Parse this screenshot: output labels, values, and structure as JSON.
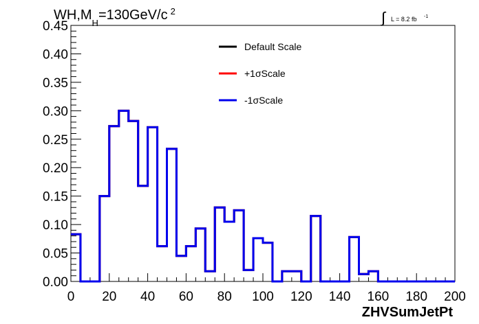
{
  "chart_data": {
    "type": "histogram-step",
    "title": {
      "prefix": "WH,M",
      "sub": "H",
      "suffix": "=130GeV/c",
      "sup": "2"
    },
    "lumi": {
      "symbol": "∫",
      "text": "L = 8.2 fb",
      "sup": "-1"
    },
    "xlabel": "ZHVSumJetPt",
    "ylabel": "",
    "xlim": [
      0,
      200
    ],
    "ylim": [
      0,
      0.45
    ],
    "xticks": [
      "0",
      "20",
      "40",
      "60",
      "80",
      "100",
      "120",
      "140",
      "160",
      "180",
      "200"
    ],
    "yticks": [
      "0.00",
      "0.05",
      "0.10",
      "0.15",
      "0.20",
      "0.25",
      "0.30",
      "0.35",
      "0.40",
      "0.45"
    ],
    "grid": false,
    "legend_position": "top-center",
    "bin_edges": [
      0,
      5,
      10,
      15,
      20,
      25,
      30,
      35,
      40,
      45,
      50,
      55,
      60,
      65,
      70,
      75,
      80,
      85,
      90,
      95,
      100,
      105,
      110,
      115,
      120,
      125,
      130,
      135,
      140,
      145,
      150,
      155,
      160,
      165,
      170,
      175,
      180,
      185,
      190,
      195,
      200
    ],
    "series": [
      {
        "name": "Default Scale",
        "color": "#000000",
        "values": [
          0.083,
          0,
          0,
          0.15,
          0.273,
          0.3,
          0.282,
          0.168,
          0.271,
          0.062,
          0.233,
          0.045,
          0.062,
          0.093,
          0.018,
          0.13,
          0.105,
          0.125,
          0.02,
          0.076,
          0.068,
          0,
          0.018,
          0.018,
          0,
          0.115,
          0,
          0,
          0,
          0.078,
          0.013,
          0.018,
          0,
          0,
          0,
          0,
          0,
          0,
          0,
          0
        ]
      },
      {
        "name": "+1σScale",
        "color": "#ff0000",
        "values": [
          0.083,
          0,
          0,
          0.15,
          0.273,
          0.3,
          0.282,
          0.168,
          0.271,
          0.062,
          0.233,
          0.045,
          0.062,
          0.093,
          0.018,
          0.13,
          0.105,
          0.125,
          0.02,
          0.076,
          0.068,
          0,
          0.018,
          0.018,
          0,
          0.115,
          0,
          0,
          0,
          0.078,
          0.013,
          0.018,
          0,
          0,
          0,
          0,
          0,
          0,
          0,
          0
        ]
      },
      {
        "name": "-1σScale",
        "color": "#0000ee",
        "values": [
          0.083,
          0,
          0,
          0.15,
          0.273,
          0.3,
          0.282,
          0.168,
          0.271,
          0.062,
          0.233,
          0.045,
          0.062,
          0.093,
          0.018,
          0.13,
          0.105,
          0.125,
          0.02,
          0.076,
          0.068,
          0,
          0.018,
          0.018,
          0,
          0.115,
          0,
          0,
          0,
          0.078,
          0.013,
          0.018,
          0,
          0,
          0,
          0,
          0,
          0,
          0,
          0
        ]
      }
    ]
  }
}
